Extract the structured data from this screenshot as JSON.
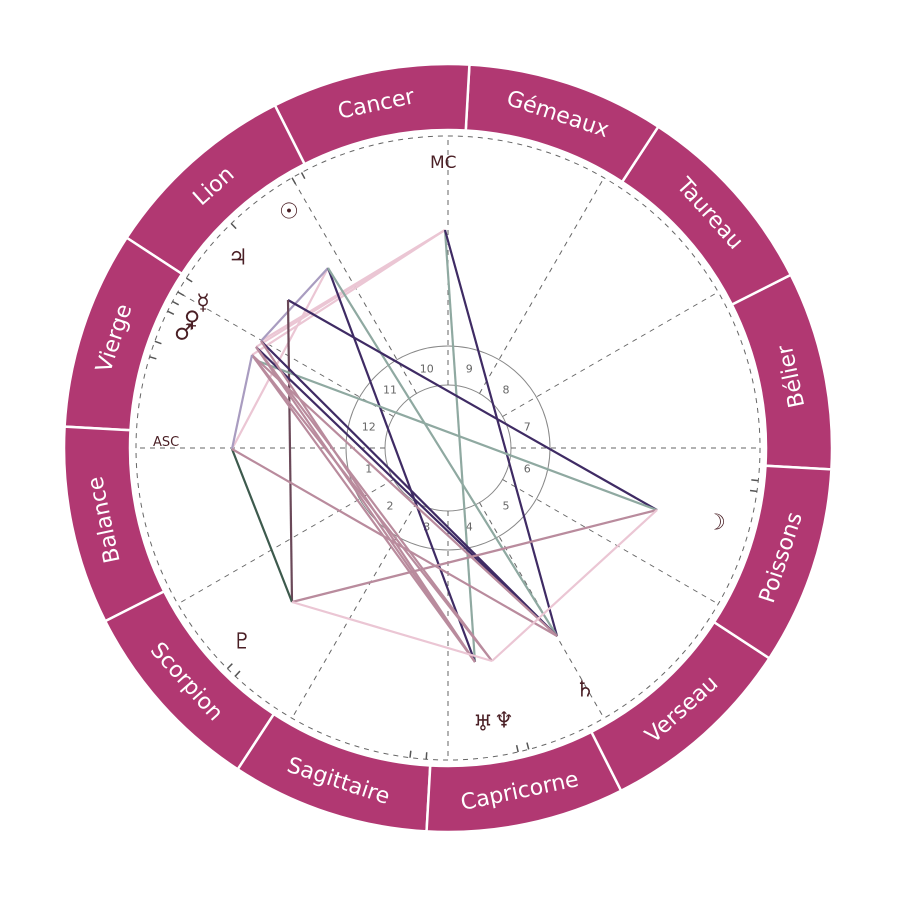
{
  "colors": {
    "ring": "#b13872",
    "ring_divider": "#ffffff",
    "sign_text": "#ffffff",
    "glyph": "#4a1f25",
    "dashed": "#666666",
    "house_circle": "#888888"
  },
  "signs": [
    "Bélier",
    "Taureau",
    "Gémeaux",
    "Cancer",
    "Lion",
    "Vierge",
    "Balance",
    "Scorpion",
    "Sagittaire",
    "Capricorne",
    "Verseau",
    "Poissons"
  ],
  "axes": {
    "asc": "ASC",
    "mc": "MC"
  },
  "houses": [
    "1",
    "2",
    "3",
    "4",
    "5",
    "6",
    "7",
    "8",
    "9",
    "10",
    "11",
    "12"
  ],
  "planets": [
    {
      "name": "sun",
      "glyph": "☉"
    },
    {
      "name": "jupiter",
      "glyph": "♃"
    },
    {
      "name": "mercury",
      "glyph": "☿"
    },
    {
      "name": "venus",
      "glyph": "♀"
    },
    {
      "name": "mars",
      "glyph": "♂"
    },
    {
      "name": "moon",
      "glyph": "☽"
    },
    {
      "name": "saturn",
      "glyph": "♄"
    },
    {
      "name": "uranus",
      "glyph": "♅"
    },
    {
      "name": "neptune",
      "glyph": "♆"
    },
    {
      "name": "pluto",
      "glyph": "♇"
    }
  ],
  "aspect_colors": {
    "dark_purple": "#3f2b64",
    "teal": "#8fa9a1",
    "light_pink": "#ebc6d4",
    "mauve": "#b98b9d",
    "lavender": "#a99cc0",
    "dark_green": "#3d5a4d",
    "dark_mauve": "#6a4858"
  }
}
